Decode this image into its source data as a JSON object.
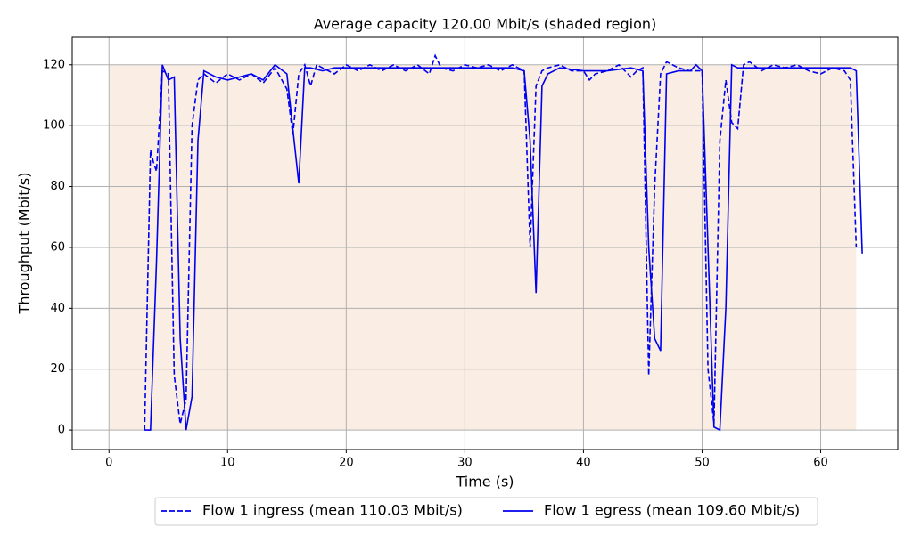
{
  "chart_data": {
    "type": "line",
    "title": "Average capacity 120.00 Mbit/s (shaded region)",
    "x_label": "Time (s)",
    "y_label": "Throughput (Mbit/s)",
    "xlim": [
      -3.1,
      66.5
    ],
    "ylim": [
      -6.4,
      129
    ],
    "xticks": [
      0,
      10,
      20,
      30,
      40,
      50,
      60
    ],
    "yticks": [
      0,
      20,
      40,
      60,
      80,
      100,
      120
    ],
    "grid": true,
    "shade": {
      "x": [
        0,
        63
      ],
      "y": [
        0,
        120
      ],
      "color": "#faeee4"
    },
    "legend": "bottom",
    "series": [
      {
        "name": "Flow 1 ingress (mean 110.03 Mbit/s)",
        "color": "#0000ee",
        "dash": true,
        "x": [
          3.0,
          3.5,
          3.75,
          4.0,
          4.5,
          5.0,
          5.5,
          6.0,
          6.5,
          7.0,
          7.5,
          8.0,
          9,
          10,
          11,
          12,
          13,
          14,
          15,
          15.5,
          16,
          16.5,
          17,
          17.5,
          18,
          19,
          20,
          21,
          22,
          23,
          24,
          25,
          26,
          27,
          27.5,
          28,
          29,
          30,
          31,
          32,
          33,
          34,
          35,
          35.5,
          36,
          36.5,
          37,
          38,
          39,
          40,
          40.5,
          41,
          42,
          43,
          44,
          44.5,
          45,
          45.5,
          46,
          46.5,
          47,
          48,
          49,
          50,
          50.5,
          51,
          51.5,
          52,
          52.5,
          53,
          53.5,
          54,
          55,
          56,
          57,
          58,
          59,
          60,
          61,
          62,
          62.5,
          63
        ],
        "values": [
          0,
          92,
          88,
          85,
          118,
          117,
          18,
          2,
          10,
          100,
          115,
          117,
          114,
          117,
          115,
          117,
          114,
          119,
          112,
          97,
          117,
          120,
          113,
          120,
          119,
          117,
          120,
          118,
          120,
          118,
          120,
          118,
          120,
          117,
          123,
          119,
          118,
          120,
          119,
          120,
          118,
          120,
          118,
          60,
          113,
          118,
          119,
          120,
          118,
          118,
          115,
          117,
          118,
          120,
          116,
          118,
          119,
          18,
          80,
          117,
          121,
          119,
          118,
          118,
          20,
          2,
          95,
          115,
          101,
          99,
          120,
          121,
          118,
          120,
          119,
          120,
          118,
          117,
          119,
          118,
          115,
          60
        ]
      },
      {
        "name": "Flow 1 egress (mean 109.60 Mbit/s)",
        "color": "#0000ee",
        "dash": false,
        "x": [
          3.0,
          3.5,
          4.0,
          4.5,
          5.0,
          5.5,
          6.0,
          6.5,
          7.0,
          7.5,
          8.0,
          9,
          10,
          11,
          12,
          13,
          14,
          15,
          16,
          16.5,
          17,
          18,
          19,
          20,
          22,
          24,
          26,
          28,
          30,
          32,
          34,
          35,
          35.5,
          36,
          36.5,
          37,
          38,
          40,
          42,
          44,
          45,
          45.5,
          46,
          46.5,
          47,
          48,
          49,
          49.5,
          50,
          50.5,
          51,
          51.5,
          52,
          52.5,
          53,
          54,
          56,
          58,
          60,
          62,
          62.5,
          63,
          63.5
        ],
        "values": [
          0,
          0,
          55,
          120,
          115,
          116,
          30,
          0,
          11,
          95,
          118,
          116,
          115,
          116,
          117,
          115,
          120,
          117,
          81,
          119,
          119,
          118,
          119,
          119,
          119,
          119,
          119,
          119,
          119,
          119,
          119,
          118,
          95,
          45,
          113,
          117,
          119,
          118,
          118,
          119,
          118,
          60,
          30,
          26,
          117,
          118,
          118,
          120,
          118,
          60,
          1,
          0,
          40,
          120,
          119,
          119,
          119,
          119,
          119,
          119,
          119,
          118,
          58
        ]
      }
    ]
  }
}
